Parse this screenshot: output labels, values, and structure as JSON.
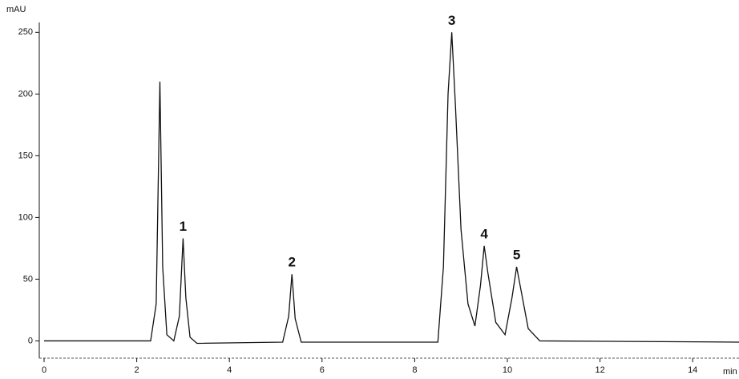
{
  "chart_data": {
    "type": "line",
    "y_label": "mAU",
    "x_label": "min",
    "x": [
      0,
      2.3,
      2.42,
      2.5,
      2.56,
      2.65,
      2.8,
      2.92,
      3.0,
      3.06,
      3.15,
      3.3,
      5.15,
      5.28,
      5.35,
      5.42,
      5.55,
      8.5,
      8.62,
      8.72,
      8.8,
      8.88,
      9.0,
      9.15,
      9.3,
      9.42,
      9.5,
      9.58,
      9.75,
      9.95,
      10.1,
      10.2,
      10.3,
      10.45,
      10.7,
      15
    ],
    "series": [
      {
        "color": "#111111",
        "values": [
          0,
          0,
          30,
          210,
          60,
          5,
          0,
          20,
          83,
          35,
          3,
          -2,
          -1,
          20,
          54,
          18,
          -1,
          -1,
          60,
          200,
          250,
          190,
          90,
          30,
          12,
          45,
          77,
          55,
          15,
          5,
          35,
          60,
          40,
          10,
          0,
          -1
        ]
      }
    ],
    "annotations": [
      {
        "text": "1",
        "x": 3.0
      },
      {
        "text": "2",
        "x": 5.35
      },
      {
        "text": "3",
        "x": 8.8
      },
      {
        "text": "4",
        "x": 9.5
      },
      {
        "text": "5",
        "x": 10.2
      }
    ],
    "xlim": [
      0,
      15
    ],
    "xticks": [
      0,
      2,
      4,
      6,
      8,
      10,
      12,
      14
    ],
    "ylim": [
      -14,
      258
    ],
    "yticks": [
      0,
      50,
      100,
      150,
      200,
      250
    ],
    "grid": false
  }
}
